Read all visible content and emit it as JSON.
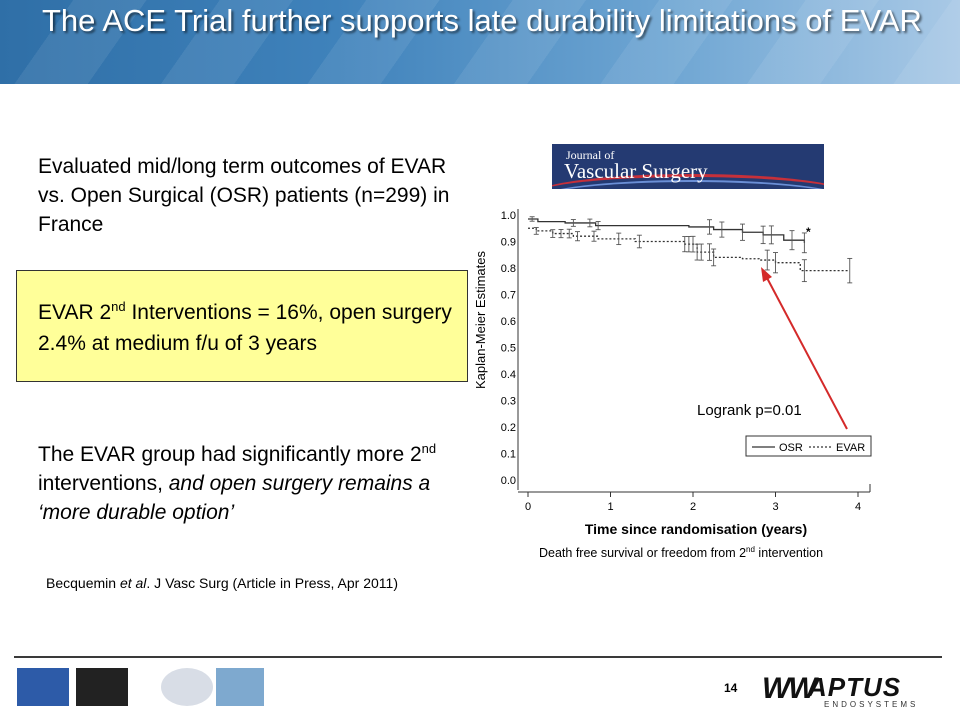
{
  "slide": {
    "title": "The ACE Trial further supports late durability limitations of EVAR",
    "p1": "Evaluated mid/long term outcomes of EVAR vs. Open Surgical (OSR) patients (n=299) in France",
    "box_pre": "EVAR 2",
    "box_sup": "nd",
    "box_post": " Interventions = 16%, open surgery 2.4% at medium  f/u of 3 years",
    "p3_pre": "The EVAR group had significantly more 2",
    "p3_sup": "nd",
    "p3_mid": " interventions, ",
    "p3_italic": "and open surgery remains a ‘more durable option’",
    "ref_pre": "Becquemin ",
    "ref_italic": "et al",
    "ref_post": ". J Vasc Surg (Article in Press, Apr 2011)",
    "journal_line1": "Journal of",
    "journal_line2": "Vascular Surgery",
    "caption_pre": "Death free survival or freedom from 2",
    "caption_sup": "nd",
    "caption_post": " intervention",
    "page_number": "14",
    "logo_text": "APTUS",
    "logo_sub": "ENDOSYSTEMS"
  },
  "chart_data": {
    "type": "line",
    "xlabel": "Time since randomisation (years)",
    "ylabel": "Kaplan-Meier Estimates",
    "xlim": [
      0,
      4
    ],
    "ylim": [
      0,
      1
    ],
    "xticks": [
      "0",
      "1",
      "2",
      "3",
      "4"
    ],
    "yticks": [
      "0.0",
      "0.1",
      "0.2",
      "0.3",
      "0.4",
      "0.5",
      "0.6",
      "0.7",
      "0.8",
      "0.9",
      "1.0"
    ],
    "annotation": "Logrank p=0.01",
    "legend_position": "bottom-right",
    "series": [
      {
        "name": "OSR",
        "style": "solid",
        "x": [
          0,
          0.12,
          0.45,
          0.82,
          1.95,
          2.25,
          2.6,
          2.85,
          3.1,
          3.35
        ],
        "y": [
          0.985,
          0.975,
          0.97,
          0.96,
          0.955,
          0.945,
          0.935,
          0.925,
          0.905,
          0.895
        ]
      },
      {
        "name": "EVAR",
        "style": "dotted",
        "x": [
          0,
          0.1,
          0.3,
          0.55,
          0.85,
          1.3,
          1.9,
          2.05,
          2.25,
          2.6,
          2.8,
          3.0,
          3.3,
          3.9
        ],
        "y": [
          0.95,
          0.94,
          0.93,
          0.92,
          0.91,
          0.9,
          0.89,
          0.86,
          0.84,
          0.835,
          0.83,
          0.82,
          0.79,
          0.79
        ]
      }
    ],
    "osr_bars": [
      0.05,
      0.55,
      0.75,
      0.85,
      2.2,
      2.35,
      2.6,
      2.85,
      2.95,
      3.2,
      3.35
    ],
    "evar_bars": [
      0.1,
      0.3,
      0.4,
      0.5,
      0.6,
      0.8,
      1.1,
      1.35,
      1.9,
      1.95,
      2.0,
      2.05,
      2.1,
      2.2,
      2.25,
      2.9,
      3.0,
      3.35,
      3.9
    ],
    "colors": {
      "line": "#333333",
      "arrow": "#d42a2a"
    }
  }
}
